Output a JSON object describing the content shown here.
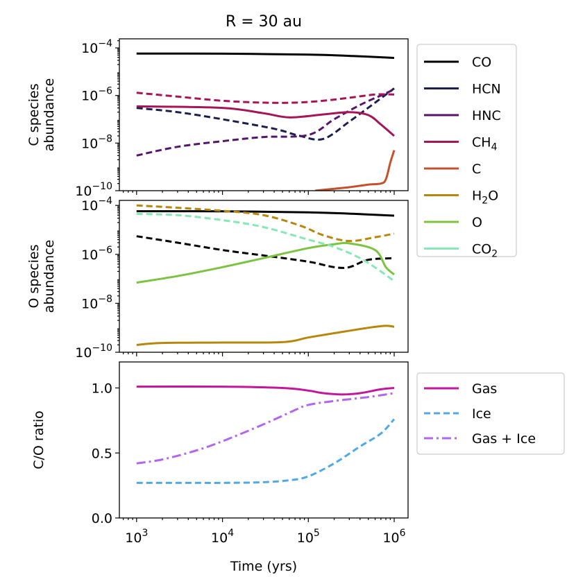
{
  "title": "R = 30 au",
  "xlabel": "Time (yrs)",
  "x_ticks": [
    {
      "value": 1000,
      "base": "10",
      "exp": "3"
    },
    {
      "value": 10000,
      "base": "10",
      "exp": "4"
    },
    {
      "value": 100000,
      "base": "10",
      "exp": "5"
    },
    {
      "value": 1000000,
      "base": "10",
      "exp": "6"
    }
  ],
  "colors": {
    "CO": "#000000",
    "HCN": "#1b1f4f",
    "HNC": "#54156b",
    "CH4": "#a51557",
    "C": "#c4512b",
    "H2O": "#b8860b",
    "O": "#7cc342",
    "CO2": "#86e8b4",
    "Gas": "#c4169c",
    "Ice": "#4ea9e6",
    "GasIce": "#b266f0"
  },
  "legend_top": [
    {
      "key": "CO",
      "base": "CO",
      "sub": ""
    },
    {
      "key": "HCN",
      "base": "HCN",
      "sub": ""
    },
    {
      "key": "HNC",
      "base": "HNC",
      "sub": ""
    },
    {
      "key": "CH4",
      "base": "CH",
      "sub": "4"
    },
    {
      "key": "C",
      "base": "C",
      "sub": ""
    },
    {
      "key": "H2O",
      "base": "H",
      "sub": "2",
      "tail": "O"
    },
    {
      "key": "O",
      "base": "O",
      "sub": ""
    },
    {
      "key": "CO2",
      "base": "CO",
      "sub": "2"
    }
  ],
  "legend_bottom": [
    {
      "key": "Gas",
      "label": "Gas",
      "dash": "solid"
    },
    {
      "key": "Ice",
      "label": "Ice",
      "dash": "dashed"
    },
    {
      "key": "GasIce",
      "label": "Gas + Ice",
      "dash": "dashdot"
    }
  ],
  "chart_data": [
    {
      "type": "line",
      "panel": "c_species",
      "ylabel": [
        "C species",
        "abundance"
      ],
      "xscale": "log",
      "yscale": "log",
      "xlim": [
        630,
        1450000
      ],
      "ylim": [
        1e-10,
        0.00024
      ],
      "y_ticks": [
        {
          "value": 0.0001,
          "base": "10",
          "exp": "−4"
        },
        {
          "value": 1e-06,
          "base": "10",
          "exp": "−6"
        },
        {
          "value": 1e-08,
          "base": "10",
          "exp": "−8"
        },
        {
          "value": 1e-10,
          "base": "10",
          "exp": "−10"
        }
      ],
      "series": [
        {
          "name": "CO gas",
          "color": "CO",
          "style": "solid",
          "x": [
            1000,
            10000,
            100000,
            300000,
            1000000
          ],
          "y": [
            5.8e-05,
            5.7e-05,
            5.2e-05,
            4.6e-05,
            3.8e-05
          ]
        },
        {
          "name": "HCN ice",
          "color": "HCN",
          "style": "dashed",
          "x": [
            1000,
            3000,
            10000,
            40000,
            80000,
            150000,
            300000,
            600000,
            1000000
          ],
          "y": [
            3e-07,
            2e-07,
            1e-07,
            4e-08,
            2e-08,
            1.5e-08,
            8e-08,
            5e-07,
            2e-06
          ]
        },
        {
          "name": "HNC ice",
          "color": "HNC",
          "style": "dashed",
          "x": [
            1000,
            3000,
            10000,
            30000,
            100000,
            200000,
            400000,
            700000,
            1000000
          ],
          "y": [
            3e-09,
            7e-09,
            1.2e-08,
            1.8e-08,
            2.2e-08,
            1e-07,
            4e-07,
            1e-06,
            1.8e-06
          ]
        },
        {
          "name": "CH4 gas",
          "color": "CH4",
          "style": "solid",
          "x": [
            1000,
            10000,
            30000,
            60000,
            150000,
            300000,
            500000,
            700000,
            1000000
          ],
          "y": [
            3.5e-07,
            3e-07,
            1.8e-07,
            1.2e-07,
            1.6e-07,
            2e-07,
            1.5e-07,
            6e-08,
            2e-08
          ]
        },
        {
          "name": "CH4 ice",
          "color": "CH4",
          "style": "dashed",
          "x": [
            1000,
            3000,
            10000,
            30000,
            70000,
            150000,
            300000,
            600000,
            1000000
          ],
          "y": [
            1.3e-06,
            9e-07,
            6e-07,
            5e-07,
            5e-07,
            6e-07,
            8e-07,
            1.1e-06,
            1.1e-06
          ]
        },
        {
          "name": "C gas",
          "color": "C",
          "style": "solid",
          "x": [
            120000,
            200000,
            300000,
            500000,
            700000,
            800000,
            900000,
            1000000
          ],
          "y": [
            1e-10,
            1.2e-10,
            1.4e-10,
            1.8e-10,
            2e-10,
            3e-10,
            1.5e-09,
            5e-09
          ]
        }
      ]
    },
    {
      "type": "line",
      "panel": "o_species",
      "ylabel": [
        "O species",
        "abundance"
      ],
      "xscale": "log",
      "yscale": "log",
      "xlim": [
        630,
        1450000
      ],
      "ylim": [
        1e-10,
        0.00016
      ],
      "y_ticks": [
        {
          "value": 0.0001,
          "base": "10",
          "exp": "−4"
        },
        {
          "value": 1e-06,
          "base": "10",
          "exp": "−6"
        },
        {
          "value": 1e-08,
          "base": "10",
          "exp": "−8"
        },
        {
          "value": 1e-10,
          "base": "10",
          "exp": "−10"
        }
      ],
      "series": [
        {
          "name": "CO gas",
          "color": "CO",
          "style": "solid",
          "x": [
            1000,
            10000,
            100000,
            300000,
            1000000
          ],
          "y": [
            5.8e-05,
            5.7e-05,
            5.2e-05,
            4.6e-05,
            3.8e-05
          ]
        },
        {
          "name": "CO ice",
          "color": "CO",
          "style": "dashed",
          "x": [
            1000,
            3000,
            10000,
            30000,
            100000,
            200000,
            300000,
            500000,
            1000000
          ],
          "y": [
            5.5e-06,
            3e-06,
            1.5e-06,
            9e-07,
            5e-07,
            3e-07,
            3e-07,
            6e-07,
            7e-07
          ]
        },
        {
          "name": "H2O gas",
          "color": "H2O",
          "style": "solid",
          "x": [
            1000,
            2000,
            10000,
            50000,
            100000,
            200000,
            500000,
            800000,
            1000000
          ],
          "y": [
            2e-10,
            2.4e-10,
            2.5e-10,
            2.6e-10,
            4e-10,
            6e-10,
            1e-09,
            1.2e-09,
            1.1e-09
          ]
        },
        {
          "name": "H2O ice",
          "color": "H2O",
          "style": "dashed",
          "x": [
            1000,
            3000,
            10000,
            30000,
            80000,
            150000,
            300000,
            600000,
            1000000
          ],
          "y": [
            0.0001,
            8e-05,
            6e-05,
            4e-05,
            1.5e-05,
            6e-06,
            3.5e-06,
            5e-06,
            7e-06
          ]
        },
        {
          "name": "O gas",
          "color": "O",
          "style": "solid",
          "x": [
            1000,
            3000,
            10000,
            30000,
            100000,
            200000,
            300000,
            600000,
            800000,
            1000000
          ],
          "y": [
            7e-08,
            1.3e-07,
            3e-07,
            7e-07,
            1.8e-06,
            2.6e-06,
            2.8e-06,
            1.5e-06,
            3e-07,
            1.5e-07
          ]
        },
        {
          "name": "CO2 ice",
          "color": "CO2",
          "style": "dashed",
          "x": [
            1000,
            3000,
            10000,
            30000,
            100000,
            200000,
            400000,
            700000,
            1000000
          ],
          "y": [
            4.5e-05,
            4e-05,
            2.5e-05,
            1.3e-05,
            4e-06,
            2e-06,
            7e-07,
            2e-07,
            8e-08
          ]
        }
      ]
    },
    {
      "type": "line",
      "panel": "co_ratio",
      "ylabel": [
        "C/O ratio"
      ],
      "xscale": "log",
      "yscale": "linear",
      "xlim": [
        630,
        1450000
      ],
      "ylim": [
        0.0,
        1.2
      ],
      "y_ticks": [
        {
          "value": 0.0,
          "label": "0.0"
        },
        {
          "value": 0.5,
          "label": "0.5"
        },
        {
          "value": 1.0,
          "label": "1.0"
        }
      ],
      "series": [
        {
          "name": "Gas",
          "color": "Gas",
          "style": "solid",
          "x": [
            1000,
            10000,
            50000,
            100000,
            150000,
            250000,
            400000,
            700000,
            1000000
          ],
          "y": [
            1.01,
            1.01,
            1.0,
            0.98,
            0.96,
            0.95,
            0.96,
            0.99,
            1.0
          ]
        },
        {
          "name": "Ice",
          "color": "Ice",
          "style": "dashed",
          "x": [
            1000,
            5000,
            10000,
            30000,
            60000,
            100000,
            200000,
            400000,
            700000,
            1000000
          ],
          "y": [
            0.27,
            0.27,
            0.27,
            0.275,
            0.29,
            0.32,
            0.42,
            0.55,
            0.65,
            0.76
          ]
        },
        {
          "name": "Gas + Ice",
          "color": "GasIce",
          "style": "dashdot",
          "x": [
            1000,
            2000,
            5000,
            10000,
            30000,
            70000,
            100000,
            200000,
            500000,
            1000000
          ],
          "y": [
            0.42,
            0.45,
            0.52,
            0.59,
            0.72,
            0.83,
            0.87,
            0.9,
            0.93,
            0.96
          ]
        }
      ]
    }
  ]
}
